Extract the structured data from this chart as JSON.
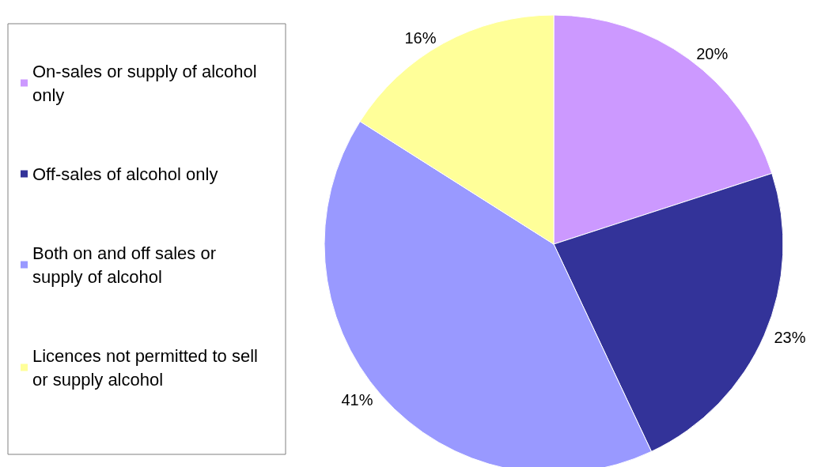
{
  "chart_data": {
    "type": "pie",
    "categories": [
      "On-sales or supply of alcohol only",
      "Off-sales of alcohol only",
      "Both on and off sales or supply of alcohol",
      "Licences not permitted to sell or supply alcohol"
    ],
    "values": [
      20,
      23,
      41,
      16
    ],
    "value_labels": [
      "20%",
      "23%",
      "41%",
      "16%"
    ],
    "colors": [
      "#cc99ff",
      "#333399",
      "#9999ff",
      "#ffff99"
    ],
    "legend": "left"
  }
}
